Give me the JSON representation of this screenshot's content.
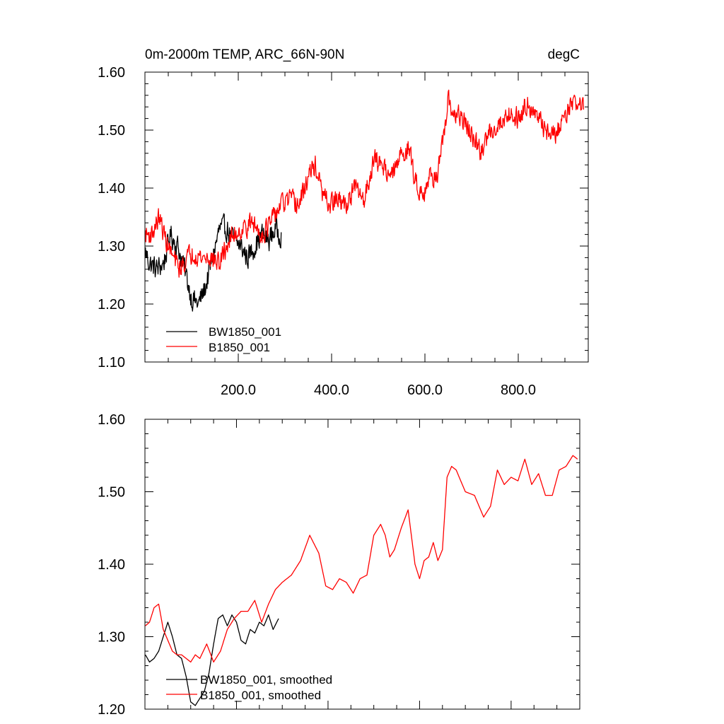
{
  "colors": {
    "bw": "#000000",
    "b": "#ff0000",
    "axis": "#000000"
  },
  "chart_data": [
    {
      "type": "line",
      "title": "0m-2000m TEMP, ARC_66N-90N",
      "units": "degC",
      "xlim": [
        0,
        950
      ],
      "ylim": [
        1.1,
        1.6
      ],
      "xticks": [
        200,
        400,
        600,
        800
      ],
      "xtick_labels": [
        "200.0",
        "400.0",
        "600.0",
        "800.0"
      ],
      "yticks": [
        1.1,
        1.2,
        1.3,
        1.4,
        1.5,
        1.6
      ],
      "ytick_labels": [
        "1.10",
        "1.20",
        "1.30",
        "1.40",
        "1.50",
        "1.60"
      ],
      "series": [
        {
          "name": "BW1850_001",
          "color": "#000000",
          "noise": 0.018,
          "x": [
            1,
            10,
            25,
            40,
            55,
            70,
            85,
            100,
            115,
            130,
            145,
            160,
            175,
            190,
            205,
            220,
            235,
            250,
            265,
            280,
            292
          ],
          "y": [
            1.29,
            1.27,
            1.26,
            1.27,
            1.32,
            1.3,
            1.26,
            1.21,
            1.2,
            1.23,
            1.28,
            1.33,
            1.33,
            1.31,
            1.3,
            1.28,
            1.3,
            1.32,
            1.31,
            1.33,
            1.32
          ]
        },
        {
          "name": "B1850_001",
          "color": "#ff0000",
          "noise": 0.016,
          "x": [
            1,
            15,
            30,
            45,
            60,
            75,
            90,
            105,
            120,
            140,
            160,
            175,
            190,
            210,
            230,
            250,
            270,
            290,
            310,
            330,
            350,
            365,
            380,
            395,
            410,
            430,
            450,
            470,
            490,
            510,
            530,
            550,
            565,
            580,
            595,
            610,
            625,
            640,
            650,
            660,
            680,
            700,
            720,
            740,
            760,
            780,
            800,
            820,
            840,
            860,
            880,
            900,
            920,
            940
          ],
          "y": [
            1.32,
            1.32,
            1.35,
            1.31,
            1.28,
            1.26,
            1.28,
            1.29,
            1.28,
            1.28,
            1.27,
            1.3,
            1.32,
            1.33,
            1.34,
            1.32,
            1.34,
            1.37,
            1.38,
            1.37,
            1.42,
            1.44,
            1.39,
            1.37,
            1.38,
            1.37,
            1.4,
            1.38,
            1.45,
            1.44,
            1.42,
            1.46,
            1.47,
            1.41,
            1.39,
            1.42,
            1.42,
            1.48,
            1.55,
            1.53,
            1.52,
            1.49,
            1.46,
            1.5,
            1.51,
            1.53,
            1.52,
            1.55,
            1.52,
            1.5,
            1.49,
            1.53,
            1.55,
            1.54
          ]
        }
      ],
      "legend": [
        "BW1850_001",
        "B1850_001"
      ],
      "legend_position": "bottom-left"
    },
    {
      "type": "line",
      "title": "",
      "xlim": [
        0,
        950
      ],
      "ylim": [
        1.2,
        1.6
      ],
      "xticks": [
        200,
        400,
        600,
        800
      ],
      "xtick_labels": [],
      "yticks": [
        1.2,
        1.3,
        1.4,
        1.5,
        1.6
      ],
      "ytick_labels": [
        "1.20",
        "1.30",
        "1.40",
        "1.50",
        "1.60"
      ],
      "series": [
        {
          "name": "BW1850_001, smoothed",
          "color": "#000000",
          "noise": 0,
          "x": [
            1,
            10,
            20,
            30,
            40,
            50,
            60,
            70,
            80,
            90,
            100,
            110,
            120,
            130,
            140,
            150,
            160,
            170,
            180,
            190,
            200,
            210,
            220,
            230,
            240,
            250,
            260,
            270,
            280,
            292
          ],
          "y": [
            1.275,
            1.265,
            1.27,
            1.28,
            1.3,
            1.32,
            1.3,
            1.275,
            1.27,
            1.245,
            1.21,
            1.205,
            1.215,
            1.225,
            1.25,
            1.29,
            1.325,
            1.33,
            1.315,
            1.33,
            1.32,
            1.295,
            1.29,
            1.31,
            1.305,
            1.32,
            1.315,
            1.33,
            1.31,
            1.325
          ]
        },
        {
          "name": "B1850_001, smoothed",
          "color": "#ff0000",
          "noise": 0,
          "x": [
            1,
            10,
            20,
            30,
            40,
            50,
            60,
            70,
            80,
            90,
            100,
            110,
            120,
            135,
            150,
            165,
            180,
            195,
            210,
            225,
            240,
            255,
            270,
            285,
            300,
            320,
            340,
            360,
            380,
            395,
            410,
            425,
            440,
            455,
            470,
            485,
            500,
            515,
            525,
            535,
            545,
            560,
            575,
            590,
            600,
            610,
            620,
            630,
            640,
            650,
            660,
            670,
            680,
            700,
            720,
            740,
            755,
            770,
            785,
            800,
            815,
            830,
            845,
            860,
            875,
            890,
            905,
            920,
            935,
            945
          ],
          "y": [
            1.315,
            1.32,
            1.34,
            1.345,
            1.31,
            1.295,
            1.28,
            1.275,
            1.275,
            1.27,
            1.265,
            1.275,
            1.27,
            1.29,
            1.265,
            1.28,
            1.31,
            1.325,
            1.335,
            1.335,
            1.35,
            1.32,
            1.345,
            1.365,
            1.375,
            1.385,
            1.405,
            1.44,
            1.415,
            1.37,
            1.365,
            1.38,
            1.375,
            1.36,
            1.38,
            1.385,
            1.44,
            1.455,
            1.44,
            1.41,
            1.42,
            1.45,
            1.475,
            1.4,
            1.38,
            1.405,
            1.41,
            1.43,
            1.405,
            1.42,
            1.52,
            1.535,
            1.53,
            1.5,
            1.495,
            1.465,
            1.48,
            1.53,
            1.51,
            1.52,
            1.515,
            1.545,
            1.51,
            1.525,
            1.495,
            1.495,
            1.53,
            1.535,
            1.55,
            1.545
          ]
        }
      ],
      "legend": [
        "BW1850_001, smoothed",
        "B1850_001, smoothed"
      ],
      "legend_position": "bottom-left"
    }
  ]
}
